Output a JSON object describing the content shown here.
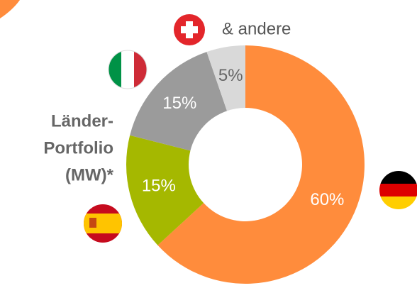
{
  "chart_data": {
    "type": "donut",
    "title": "Länder-Portfolio (MW)*",
    "title_lines": [
      "Länder-",
      "Portfolio",
      "(MW)*"
    ],
    "annotation": "& andere",
    "values": [
      60,
      15,
      15,
      5
    ],
    "value_labels": [
      "60%",
      "15%",
      "15%",
      "5%"
    ],
    "colors": [
      "#ff8c3c",
      "#a5b800",
      "#9b9b9b",
      "#d9d9d9"
    ]
  }
}
